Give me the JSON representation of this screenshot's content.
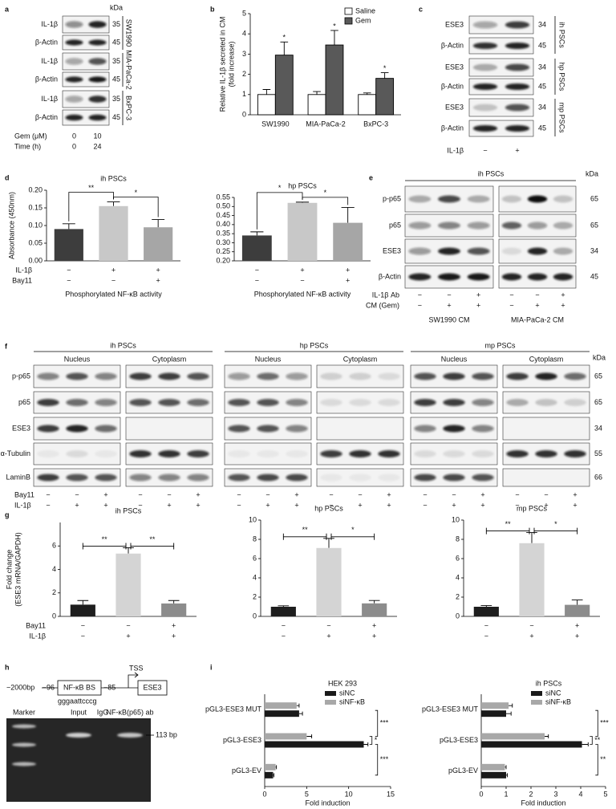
{
  "figure": {
    "panel_labels": [
      "a",
      "b",
      "c",
      "d",
      "e",
      "f",
      "g",
      "h",
      "i"
    ],
    "panel_a": {
      "kda_header": "kDa",
      "rows": [
        {
          "label": "IL-1β",
          "kda": 35
        },
        {
          "label": "β-Actin",
          "kda": 45
        },
        {
          "label": "IL-1β",
          "kda": 35
        },
        {
          "label": "β-Actin",
          "kda": 45
        },
        {
          "label": "IL-1β",
          "kda": 35
        },
        {
          "label": "β-Actin",
          "kda": 45
        }
      ],
      "cell_lines": [
        "SW1990",
        "MIA-PaCa-2",
        "BxPC-3"
      ],
      "conditions": [
        {
          "label": "Gem (μM)",
          "lanes": [
            "0",
            "10"
          ]
        },
        {
          "label": "Time (h)",
          "lanes": [
            "0",
            "24"
          ]
        }
      ]
    },
    "panel_c": {
      "rows": [
        {
          "label": "ESE3",
          "kda": 34
        },
        {
          "label": "β-Actin",
          "kda": 45
        },
        {
          "label": "ESE3",
          "kda": 34
        },
        {
          "label": "β-Actin",
          "kda": 45
        },
        {
          "label": "ESE3",
          "kda": 34
        },
        {
          "label": "β-Actin",
          "kda": 45
        }
      ],
      "cell_types": [
        "ih PSCs",
        "hp PSCs",
        "mp PSCs"
      ],
      "condition": {
        "label": "IL-1β",
        "lanes": [
          "−",
          "+"
        ]
      }
    },
    "panel_e": {
      "header": "ih PSCs",
      "kda_header": "kDa",
      "rows": [
        {
          "label": "p-p65",
          "kda": 65
        },
        {
          "label": "p65",
          "kda": 65
        },
        {
          "label": "ESE3",
          "kda": 34
        },
        {
          "label": "β-Actin",
          "kda": 45
        }
      ],
      "conditions": [
        {
          "label": "IL-1β Ab",
          "lanes": [
            "−",
            "−",
            "+",
            "−",
            "−",
            "+"
          ]
        },
        {
          "label": "CM (Gem)",
          "lanes": [
            "−",
            "+",
            "+",
            "−",
            "+",
            "+"
          ]
        }
      ],
      "groups": [
        "SW1990 CM",
        "MIA-PaCa-2 CM"
      ]
    },
    "panel_f": {
      "kda_header": "kDa",
      "cell_types": [
        "ih PSCs",
        "hp PSCs",
        "mp PSCs"
      ],
      "fractions": [
        "Nucleus",
        "Cytoplasm",
        "Nucleus",
        "Cytoplasm",
        "Nucleus",
        "Cytoplasm"
      ],
      "rows": [
        {
          "label": "p-p65",
          "kda": 65
        },
        {
          "label": "p65",
          "kda": 65
        },
        {
          "label": "ESE3",
          "kda": 34
        },
        {
          "label": "α-Tubulin",
          "kda": 55
        },
        {
          "label": "LaminB",
          "kda": 66
        }
      ],
      "conditions": [
        {
          "label": "Bay11",
          "lanes": [
            "−",
            "−",
            "+",
            "−",
            "−",
            "+",
            "−",
            "−",
            "+",
            "−",
            "−",
            "+",
            "−",
            "−",
            "+",
            "−",
            "−",
            "+"
          ]
        },
        {
          "label": "IL-1β",
          "lanes": [
            "−",
            "+",
            "+",
            "−",
            "+",
            "+",
            "−",
            "+",
            "+",
            "−",
            "+",
            "+",
            "−",
            "+",
            "+",
            "−",
            "+",
            "+"
          ]
        }
      ]
    },
    "panel_h": {
      "diagram": {
        "start": "−2000bp",
        "site_start": "−96",
        "site": "NF-κB BS",
        "site_end": "−85",
        "tss": "TSS",
        "gene": "ESE3",
        "sequence": "gggaattcccg"
      },
      "gel": {
        "lanes": [
          "Marker",
          "Input",
          "IgG",
          "NF-κB(p65) ab"
        ],
        "size": "113 bp"
      }
    }
  },
  "chart_data": [
    {
      "type": "bar",
      "ylabel": [
        "Relative IL-1β secreted in CM",
        "(fold increase)"
      ],
      "categories": [
        "SW1990",
        "MIA-PaCa-2",
        "BxPC-3"
      ],
      "series": [
        {
          "name": "Saline",
          "color": "#ffffff",
          "values": [
            1,
            1,
            1
          ],
          "errors": [
            0.25,
            0.15,
            0.08
          ]
        },
        {
          "name": "Gem",
          "color": "#595959",
          "values": [
            2.95,
            3.45,
            1.8
          ],
          "errors": [
            0.65,
            0.72,
            0.28
          ]
        }
      ],
      "ylim": [
        0,
        5
      ],
      "yticks": [
        0,
        1,
        2,
        3,
        4,
        5
      ],
      "annotations": [
        "*",
        "*",
        "*"
      ],
      "legend": "upper right"
    },
    {
      "type": "bar",
      "title": "ih PSCs",
      "ylabel": [
        "Absorbance (450nm)"
      ],
      "xlabel": "Phosphorylated NF-κB activity",
      "categories": [
        null,
        null,
        null
      ],
      "values": [
        0.09,
        0.155,
        0.095
      ],
      "errors": [
        0.015,
        0.012,
        0.022
      ],
      "colors": [
        "#3d3d3d",
        "#c8c8c8",
        "#a6a6a6"
      ],
      "ylim": [
        0,
        0.2
      ],
      "yticks": [
        {
          "value": 0,
          "label": "0.00"
        },
        0.05,
        {
          "value": 0.1,
          "label": "0.10"
        },
        0.15,
        {
          "value": 0.2,
          "label": "0.20"
        }
      ],
      "significance": [
        "**",
        "*"
      ],
      "conditions": [
        {
          "label": "IL-1β",
          "signs": [
            "−",
            "+",
            "+"
          ]
        },
        {
          "label": "Bay11",
          "signs": [
            "−",
            "−",
            "+"
          ]
        }
      ]
    },
    {
      "type": "bar",
      "title": "hp PSCs",
      "xlabel": "Phosphorylated NF-κB activity",
      "categories": [
        null,
        null,
        null
      ],
      "values": [
        0.34,
        0.52,
        0.41
      ],
      "errors": [
        0.02,
        0.004,
        0.085
      ],
      "colors": [
        "#3d3d3d",
        "#c8c8c8",
        "#a6a6a6"
      ],
      "ylim": [
        0.2,
        0.55
      ],
      "yticks": [
        {
          "value": 0.2,
          "label": "0.20"
        },
        0.25,
        {
          "value": 0.3,
          "label": "0.30"
        },
        0.35,
        {
          "value": 0.4,
          "label": "0.40"
        },
        0.45,
        {
          "value": 0.5,
          "label": "0.50"
        },
        0.55
      ],
      "significance": [
        "*",
        "*"
      ],
      "conditions": [
        {
          "signs": [
            "−",
            "+",
            "+"
          ]
        },
        {
          "signs": [
            "−",
            "−",
            "+"
          ]
        }
      ]
    },
    {
      "type": "bar",
      "title": "ih PSCs",
      "ylabel": [
        "Fold change",
        "(ESE3 mRNA/GAPDH)"
      ],
      "categories": [
        null,
        null,
        null
      ],
      "values": [
        1.0,
        5.35,
        1.1
      ],
      "errors": [
        0.35,
        0.5,
        0.25
      ],
      "colors": [
        "#1e1e1e",
        "#d4d4d4",
        "#8c8c8c"
      ],
      "ylim": [
        0,
        8
      ],
      "yticks": [
        0,
        2,
        4,
        6
      ],
      "significance": [
        "**",
        "**"
      ],
      "conditions": [
        {
          "label": "Bay11",
          "signs": [
            "−",
            "−",
            "+"
          ]
        },
        {
          "label": "IL-1β",
          "signs": [
            "−",
            "+",
            "+"
          ]
        }
      ]
    },
    {
      "type": "bar",
      "title": "hp PSCs",
      "categories": [
        null,
        null,
        null
      ],
      "values": [
        1.0,
        7.1,
        1.35
      ],
      "errors": [
        0.1,
        1.0,
        0.3
      ],
      "colors": [
        "#1e1e1e",
        "#d4d4d4",
        "#8c8c8c"
      ],
      "ylim": [
        0,
        10
      ],
      "yticks": [
        0,
        2,
        4,
        6,
        8,
        10
      ],
      "significance": [
        "**",
        "*"
      ],
      "conditions": [
        {
          "signs": [
            "−",
            "−",
            "+"
          ]
        },
        {
          "signs": [
            "−",
            "+",
            "+"
          ]
        }
      ]
    },
    {
      "type": "bar",
      "title": "mp PSCs",
      "categories": [
        null,
        null,
        null
      ],
      "values": [
        1.0,
        7.6,
        1.2
      ],
      "errors": [
        0.12,
        1.1,
        0.5
      ],
      "colors": [
        "#1e1e1e",
        "#d4d4d4",
        "#8c8c8c"
      ],
      "ylim": [
        0,
        10
      ],
      "yticks": [
        0,
        2,
        4,
        6,
        8,
        10
      ],
      "significance": [
        "**",
        "*"
      ],
      "conditions": [
        {
          "signs": [
            "−",
            "−",
            "+"
          ]
        },
        {
          "signs": [
            "−",
            "+",
            "+"
          ]
        }
      ]
    },
    {
      "type": "hbar",
      "title": "HEK 293",
      "xlabel": "Fold induction",
      "categories": [
        "pGL3-ESE3 MUT",
        "pGL3-ESE3",
        "pGL3-EV"
      ],
      "series": [
        {
          "name": "siNC",
          "color": "#1a1a1a",
          "values": [
            4.1,
            11.8,
            1.0
          ],
          "errors": [
            0.4,
            0.5,
            0.1
          ]
        },
        {
          "name": "siNF-κB",
          "color": "#a8a8a8",
          "values": [
            3.8,
            5.0,
            1.3
          ],
          "errors": [
            0.3,
            0.6,
            0.1
          ]
        }
      ],
      "xlim": [
        0,
        15
      ],
      "xticks": [
        0,
        5,
        10,
        15
      ],
      "significance": [
        "***",
        "*",
        "***"
      ],
      "legend": "upper right"
    },
    {
      "type": "hbar",
      "title": "ih PSCs",
      "xlabel": "Fold induction",
      "categories": [
        "pGL3-ESE3 MUT",
        "pGL3-ESE3",
        "pGL3-EV"
      ],
      "series": [
        {
          "name": "siNC",
          "color": "#1a1a1a",
          "values": [
            1.0,
            4.05,
            1.0
          ],
          "errors": [
            0.2,
            0.25,
            0.05
          ]
        },
        {
          "name": "siNF-κB",
          "color": "#a8a8a8",
          "values": [
            1.1,
            2.55,
            0.95
          ],
          "errors": [
            0.15,
            0.15,
            0.05
          ]
        }
      ],
      "xlim": [
        0,
        5
      ],
      "xticks": [
        0,
        1,
        2,
        3,
        4,
        5
      ],
      "significance": [
        "***",
        "**",
        "**"
      ],
      "legend": "upper right"
    }
  ]
}
